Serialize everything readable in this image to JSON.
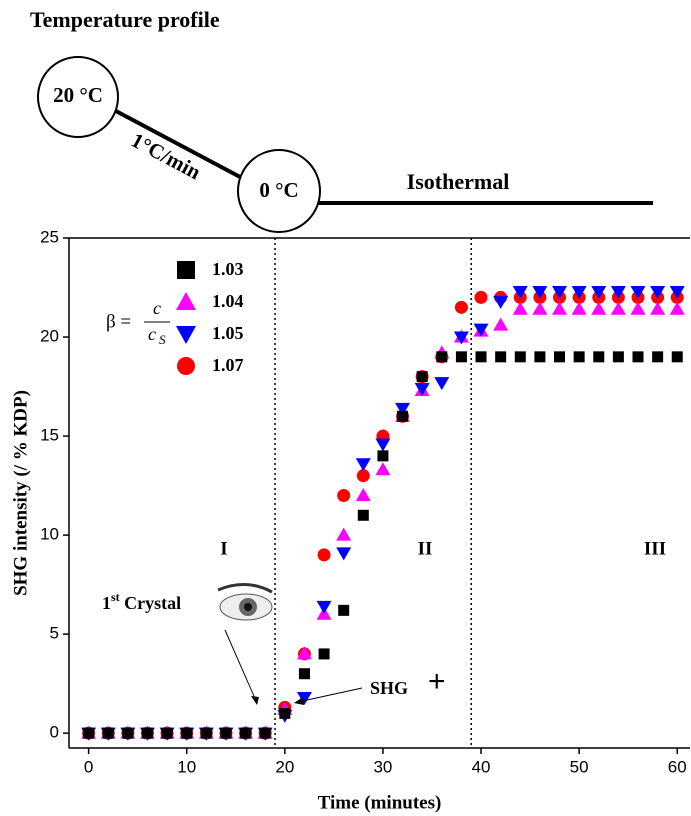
{
  "chart_data": {
    "type": "scatter",
    "header": "Temperature profile",
    "profile": {
      "start": "20 °C",
      "rate": "1°C/min",
      "end": "0 °C",
      "hold": "Isothermal"
    },
    "x_label": "Time (minutes)",
    "y_label": "SHG intensity (/ % KDP)",
    "legend_title": {
      "lhs": "β =",
      "numerator": "c",
      "denominator": "c",
      "subscript": "S"
    },
    "annotations": [
      "I",
      "II",
      "III"
    ],
    "crystal_note": {
      "base": "1",
      "sup": "st",
      "rest": " Crystal"
    },
    "shg_note": {
      "text": "SHG",
      "sign": "+"
    },
    "dividers": [
      19,
      39
    ],
    "x": [
      0,
      2,
      4,
      6,
      8,
      10,
      12,
      14,
      16,
      18,
      20,
      22,
      24,
      26,
      28,
      30,
      32,
      34,
      36,
      38,
      40,
      42,
      44,
      46,
      48,
      50,
      52,
      54,
      56,
      58,
      60
    ],
    "series": [
      {
        "name": "1.03",
        "color": "#000000",
        "marker": "square",
        "values": [
          0,
          0,
          0,
          0,
          0,
          0,
          0,
          0,
          0,
          0,
          1.0,
          3.0,
          4.0,
          6.2,
          11,
          14,
          16,
          18,
          19,
          19,
          19,
          19,
          19,
          19,
          19,
          19,
          19,
          19,
          19,
          19,
          19
        ]
      },
      {
        "name": "1.04",
        "color": "#ff00ff",
        "marker": "triangle-up",
        "values": [
          0,
          0,
          0,
          0,
          0,
          0,
          0,
          0,
          0,
          0,
          1.2,
          4.0,
          6.0,
          10,
          12,
          13.3,
          16,
          17.3,
          19.2,
          20,
          20.3,
          20.6,
          21.4,
          21.4,
          21.4,
          21.4,
          21.4,
          21.4,
          21.4,
          21.4,
          21.4
        ]
      },
      {
        "name": "1.05",
        "color": "#0000ff",
        "marker": "triangle-down",
        "values": [
          0,
          0,
          0,
          0,
          0,
          0,
          0,
          0,
          0,
          0,
          0.9,
          1.8,
          6.4,
          9.1,
          13.6,
          14.6,
          16.4,
          17.4,
          17.7,
          20,
          20.4,
          21.8,
          22.3,
          22.3,
          22.3,
          22.3,
          22.3,
          22.3,
          22.3,
          22.3,
          22.3
        ]
      },
      {
        "name": "1.07",
        "color": "#ff0000",
        "marker": "circle",
        "values": [
          0,
          0,
          0,
          0,
          0,
          0,
          0,
          0,
          0,
          0,
          1.3,
          4.0,
          9.0,
          12,
          13,
          15,
          16,
          18,
          19,
          21.5,
          22,
          22,
          22,
          22,
          22,
          22,
          22,
          22,
          22,
          22,
          22
        ]
      }
    ],
    "xlim": [
      -2,
      61.3
    ],
    "ylim": [
      -0.75,
      25
    ],
    "xticks": [
      0,
      10,
      20,
      30,
      40,
      50,
      60
    ],
    "yticks": [
      0,
      5,
      10,
      15,
      20,
      25
    ]
  }
}
